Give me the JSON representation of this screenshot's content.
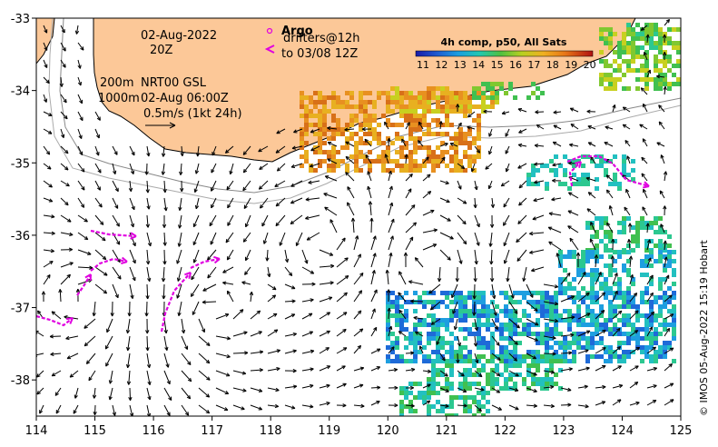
{
  "map": {
    "lon_range": [
      114,
      125
    ],
    "lat_range": [
      -38.5,
      -33
    ],
    "x_ticks": [
      "114",
      "115",
      "116",
      "117",
      "118",
      "119",
      "120",
      "121",
      "122",
      "123",
      "124",
      "125"
    ],
    "y_ticks": [
      "-33",
      "-34",
      "-35",
      "-36",
      "-37",
      "-38"
    ],
    "x_tick_values": [
      114,
      115,
      116,
      117,
      118,
      119,
      120,
      121,
      122,
      123,
      124,
      125
    ],
    "y_tick_values": [
      -33,
      -34,
      -35,
      -36,
      -37,
      -38
    ]
  },
  "annotations": {
    "date": "02-Aug-2022",
    "time": "20Z",
    "depth_200": "200m",
    "depth_1000": "1000m",
    "nrt": "NRT00 GSL",
    "nrt_time": "02-Aug 06:00Z",
    "scale": "0.5m/s (1kt 24h)",
    "argo": "Argo",
    "drifters": "drifters@12h",
    "drifters_to": "to 03/08 12Z"
  },
  "colorbar": {
    "title": "4h comp, p50, All Sats",
    "labels": [
      "11",
      "12",
      "13",
      "14",
      "15",
      "16",
      "17",
      "18",
      "19",
      "20"
    ]
  },
  "credit": "© IMOS 05-Aug-2022 15:19 Hobart",
  "colors": {
    "land": "#fcc898",
    "drifter": "#e000e0",
    "arrow": "#000000"
  }
}
